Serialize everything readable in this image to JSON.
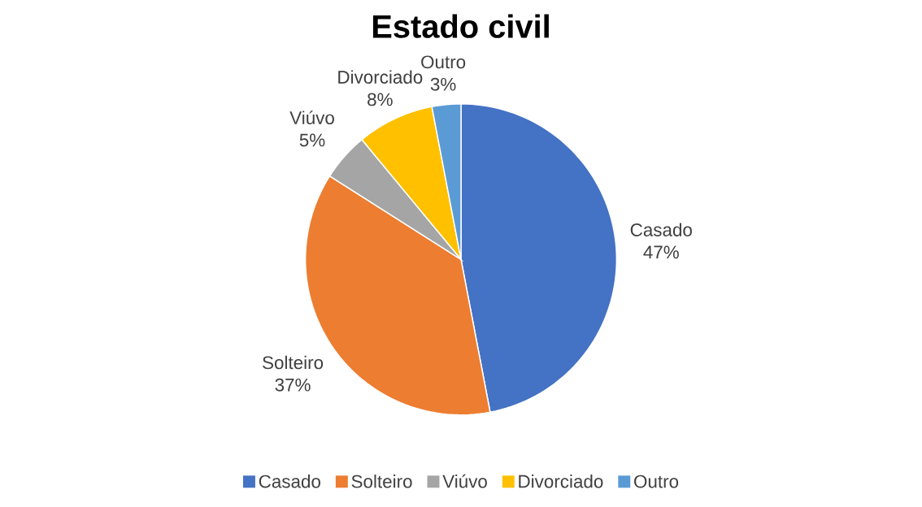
{
  "chart_data": {
    "type": "pie",
    "title": "Estado civil",
    "categories": [
      "Casado",
      "Solteiro",
      "Viúvo",
      "Divorciado",
      "Outro"
    ],
    "values": [
      47,
      37,
      5,
      8,
      3
    ],
    "value_labels": [
      "47%",
      "37%",
      "5%",
      "8%",
      "3%"
    ],
    "colors": [
      "#4472c4",
      "#ed7d31",
      "#a5a5a5",
      "#ffc000",
      "#5b9bd5"
    ],
    "legend": "bottom"
  }
}
